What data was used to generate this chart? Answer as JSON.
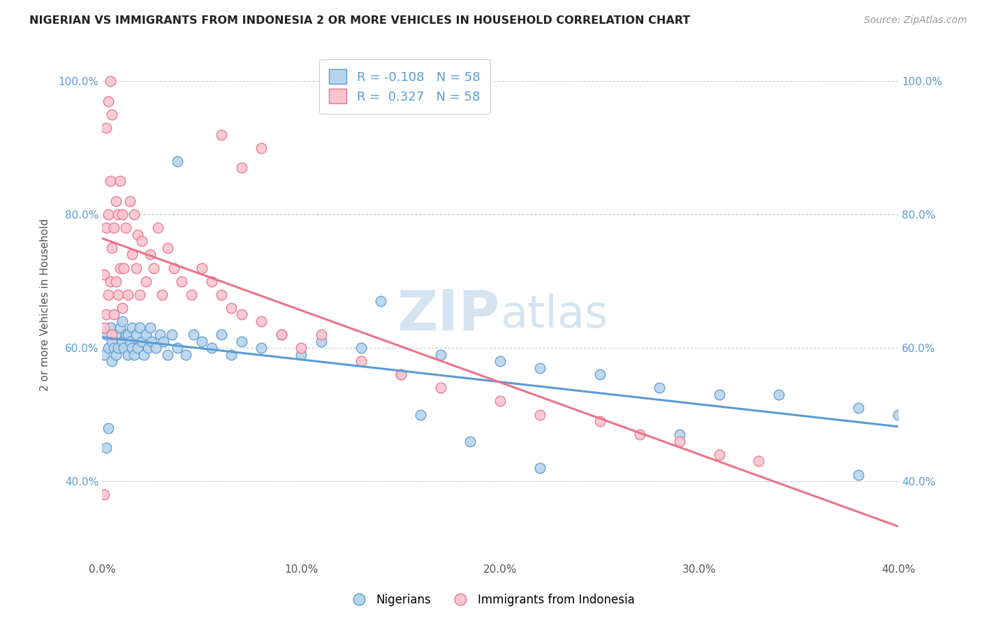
{
  "title": "NIGERIAN VS IMMIGRANTS FROM INDONESIA 2 OR MORE VEHICLES IN HOUSEHOLD CORRELATION CHART",
  "source_text": "Source: ZipAtlas.com",
  "ylabel": "2 or more Vehicles in Household",
  "xmin": 0.0,
  "xmax": 0.4,
  "ymin": 0.28,
  "ymax": 1.05,
  "xtick_labels": [
    "0.0%",
    "10.0%",
    "20.0%",
    "30.0%",
    "40.0%"
  ],
  "xtick_values": [
    0.0,
    0.1,
    0.2,
    0.3,
    0.4
  ],
  "ytick_labels": [
    "40.0%",
    "60.0%",
    "80.0%",
    "100.0%"
  ],
  "ytick_values": [
    0.4,
    0.6,
    0.8,
    1.0
  ],
  "blue_fill": "#b8d4ec",
  "blue_edge": "#5b9bd5",
  "pink_fill": "#f9c6d0",
  "pink_edge": "#e8748a",
  "blue_line": "#5b9bd5",
  "pink_line": "#e8748a",
  "watermark_color": "#d5e4f0",
  "R_blue": -0.108,
  "N_blue": 58,
  "R_pink": 0.327,
  "N_pink": 58,
  "blue_x": [
    0.001,
    0.002,
    0.003,
    0.004,
    0.005,
    0.005,
    0.006,
    0.007,
    0.007,
    0.008,
    0.009,
    0.01,
    0.01,
    0.011,
    0.012,
    0.013,
    0.013,
    0.014,
    0.015,
    0.015,
    0.016,
    0.017,
    0.018,
    0.019,
    0.02,
    0.021,
    0.022,
    0.023,
    0.024,
    0.025,
    0.027,
    0.029,
    0.031,
    0.033,
    0.035,
    0.038,
    0.042,
    0.046,
    0.05,
    0.055,
    0.06,
    0.065,
    0.07,
    0.08,
    0.09,
    0.1,
    0.11,
    0.13,
    0.15,
    0.17,
    0.2,
    0.22,
    0.25,
    0.28,
    0.31,
    0.34,
    0.38,
    0.4
  ],
  "blue_y": [
    0.59,
    0.62,
    0.6,
    0.63,
    0.58,
    0.61,
    0.6,
    0.59,
    0.62,
    0.6,
    0.63,
    0.61,
    0.64,
    0.6,
    0.62,
    0.59,
    0.62,
    0.61,
    0.6,
    0.63,
    0.59,
    0.62,
    0.6,
    0.63,
    0.61,
    0.59,
    0.62,
    0.6,
    0.63,
    0.61,
    0.6,
    0.62,
    0.61,
    0.59,
    0.62,
    0.6,
    0.59,
    0.62,
    0.61,
    0.6,
    0.62,
    0.59,
    0.61,
    0.6,
    0.62,
    0.59,
    0.61,
    0.6,
    0.56,
    0.59,
    0.58,
    0.57,
    0.56,
    0.54,
    0.53,
    0.53,
    0.51,
    0.5
  ],
  "blue_x_outliers": [
    0.002,
    0.003,
    0.038,
    0.14,
    0.16,
    0.185,
    0.22,
    0.29,
    0.38
  ],
  "blue_y_outliers": [
    0.45,
    0.48,
    0.88,
    0.67,
    0.5,
    0.46,
    0.42,
    0.47,
    0.41
  ],
  "pink_x": [
    0.001,
    0.001,
    0.002,
    0.002,
    0.003,
    0.003,
    0.004,
    0.004,
    0.005,
    0.005,
    0.006,
    0.006,
    0.007,
    0.007,
    0.008,
    0.008,
    0.009,
    0.009,
    0.01,
    0.01,
    0.011,
    0.012,
    0.013,
    0.014,
    0.015,
    0.016,
    0.017,
    0.018,
    0.019,
    0.02,
    0.022,
    0.024,
    0.026,
    0.028,
    0.03,
    0.033,
    0.036,
    0.04,
    0.045,
    0.05,
    0.055,
    0.06,
    0.065,
    0.07,
    0.08,
    0.09,
    0.1,
    0.11,
    0.13,
    0.15,
    0.17,
    0.2,
    0.22,
    0.25,
    0.27,
    0.29,
    0.31,
    0.33
  ],
  "pink_y": [
    0.63,
    0.71,
    0.65,
    0.78,
    0.68,
    0.8,
    0.7,
    0.85,
    0.62,
    0.75,
    0.65,
    0.78,
    0.7,
    0.82,
    0.68,
    0.8,
    0.72,
    0.85,
    0.66,
    0.8,
    0.72,
    0.78,
    0.68,
    0.82,
    0.74,
    0.8,
    0.72,
    0.77,
    0.68,
    0.76,
    0.7,
    0.74,
    0.72,
    0.78,
    0.68,
    0.75,
    0.72,
    0.7,
    0.68,
    0.72,
    0.7,
    0.68,
    0.66,
    0.65,
    0.64,
    0.62,
    0.6,
    0.62,
    0.58,
    0.56,
    0.54,
    0.52,
    0.5,
    0.49,
    0.47,
    0.46,
    0.44,
    0.43
  ],
  "pink_x_outliers": [
    0.001,
    0.002,
    0.003,
    0.004,
    0.005,
    0.06,
    0.07,
    0.08
  ],
  "pink_y_outliers": [
    0.38,
    0.93,
    0.97,
    1.0,
    0.95,
    0.92,
    0.87,
    0.9
  ],
  "figsize": [
    14.06,
    8.92
  ],
  "dpi": 100
}
